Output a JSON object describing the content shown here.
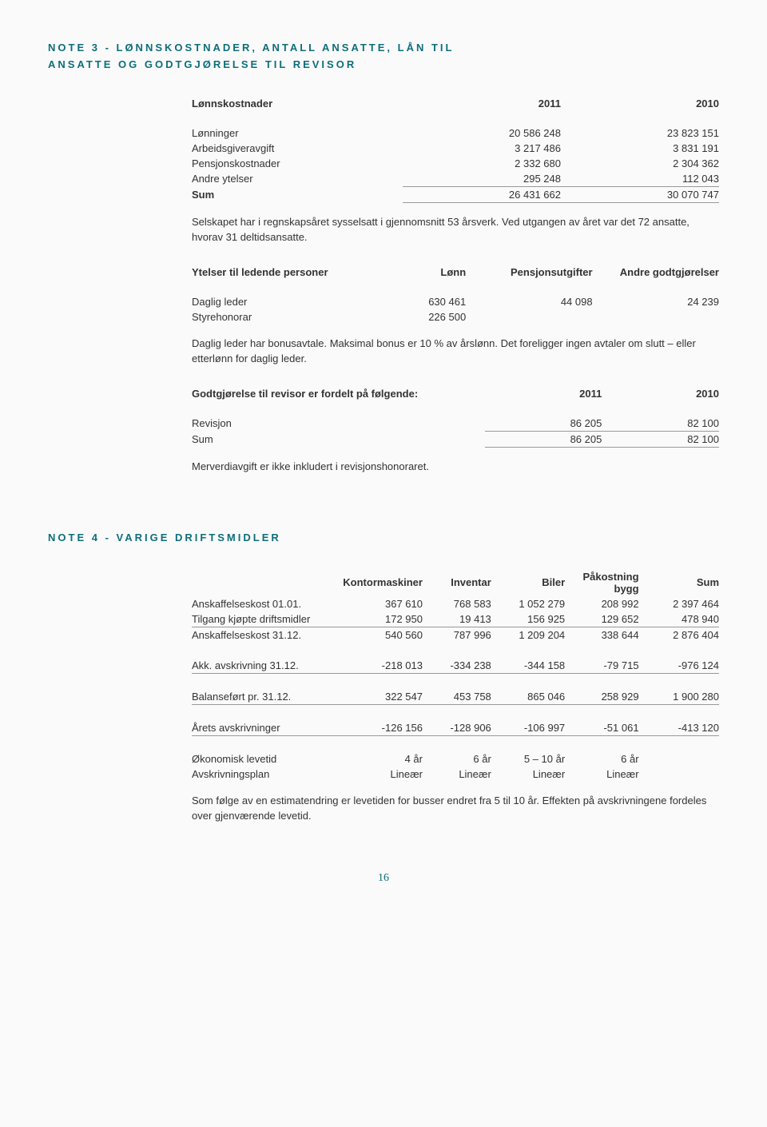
{
  "note3": {
    "title_line1": "NOTE 3 - LØNNSKOSTNADER, ANTALL ANSATTE, LÅN TIL",
    "title_line2": "ANSATTE OG GODTGJØRELSE TIL REVISOR",
    "t1": {
      "header": [
        "Lønnskostnader",
        "2011",
        "2010"
      ],
      "rows": [
        [
          "Lønninger",
          "20 586 248",
          "23 823 151"
        ],
        [
          "Arbeidsgiveravgift",
          "3 217 486",
          "3 831 191"
        ],
        [
          "Pensjonskostnader",
          "2 332 680",
          "2 304 362"
        ],
        [
          "Andre ytelser",
          "295 248",
          "112 043"
        ],
        [
          "Sum",
          "26 431 662",
          "30 070 747"
        ]
      ]
    },
    "para1": "Selskapet har i regnskapsåret sysselsatt i gjennomsnitt 53 årsverk. Ved utgangen av året var det 72 ansatte, hvorav 31 deltidsansatte.",
    "t2": {
      "header": [
        "Ytelser til ledende personer",
        "Lønn",
        "Pensjonsutgifter",
        "Andre godtgjørelser"
      ],
      "rows": [
        [
          "Daglig leder",
          "630 461",
          "44 098",
          "24 239"
        ],
        [
          "Styrehonorar",
          "226 500",
          "",
          ""
        ]
      ]
    },
    "para2": "Daglig leder har bonusavtale. Maksimal bonus er 10 % av årslønn. Det foreligger ingen avtaler om slutt – eller etterlønn for daglig leder.",
    "t3": {
      "header": [
        "Godtgjørelse til revisor er fordelt på følgende:",
        "2011",
        "2010"
      ],
      "rows": [
        [
          "Revisjon",
          "86 205",
          "82 100"
        ],
        [
          "Sum",
          "86 205",
          "82 100"
        ]
      ]
    },
    "para3": "Merverdiavgift er ikke inkludert i revisjonshonoraret."
  },
  "note4": {
    "title": "NOTE 4 - VARIGE DRIFTSMIDLER",
    "header": [
      "",
      "Kontormaskiner",
      "Inventar",
      "Biler",
      "Påkostning bygg",
      "Sum"
    ],
    "rows": [
      {
        "cells": [
          "Anskaffelseskost 01.01.",
          "367 610",
          "768 583",
          "1 052 279",
          "208 992",
          "2 397 464"
        ],
        "underline": false
      },
      {
        "cells": [
          "Tilgang kjøpte driftsmidler",
          "172 950",
          "19 413",
          "156 925",
          "129 652",
          "478 940"
        ],
        "underline": true
      },
      {
        "cells": [
          "Anskaffelseskost 31.12.",
          "540 560",
          "787 996",
          "1 209 204",
          "338 644",
          "2 876 404"
        ],
        "underline": false
      },
      {
        "cells": [
          "",
          "",
          "",
          "",
          "",
          ""
        ],
        "underline": false
      },
      {
        "cells": [
          "Akk. avskrivning 31.12.",
          "-218 013",
          "-334 238",
          "-344 158",
          "-79 715",
          "-976 124"
        ],
        "underline": true
      },
      {
        "cells": [
          "",
          "",
          "",
          "",
          "",
          ""
        ],
        "underline": false
      },
      {
        "cells": [
          "Balanseført pr. 31.12.",
          "322 547",
          "453 758",
          "865 046",
          "258 929",
          "1 900 280"
        ],
        "underline": true
      },
      {
        "cells": [
          "",
          "",
          "",
          "",
          "",
          ""
        ],
        "underline": false
      },
      {
        "cells": [
          "Årets avskrivninger",
          "-126 156",
          "-128 906",
          "-106 997",
          "-51 061",
          "-413 120"
        ],
        "underline": true
      },
      {
        "cells": [
          "",
          "",
          "",
          "",
          "",
          ""
        ],
        "underline": false
      },
      {
        "cells": [
          "Økonomisk levetid",
          "4 år",
          "6 år",
          "5 – 10 år",
          "6 år",
          ""
        ],
        "underline": false
      },
      {
        "cells": [
          "Avskrivningsplan",
          "Lineær",
          "Lineær",
          "Lineær",
          "Lineær",
          ""
        ],
        "underline": false
      }
    ],
    "para": "Som følge av en estimatendring er levetiden for busser endret fra 5 til 10 år. Effekten på avskrivningene fordeles over gjenværende levetid."
  },
  "page_number": "16",
  "colors": {
    "heading": "#0d6e7a",
    "text": "#333333",
    "rule": "#999999",
    "background": "#fafafa"
  }
}
